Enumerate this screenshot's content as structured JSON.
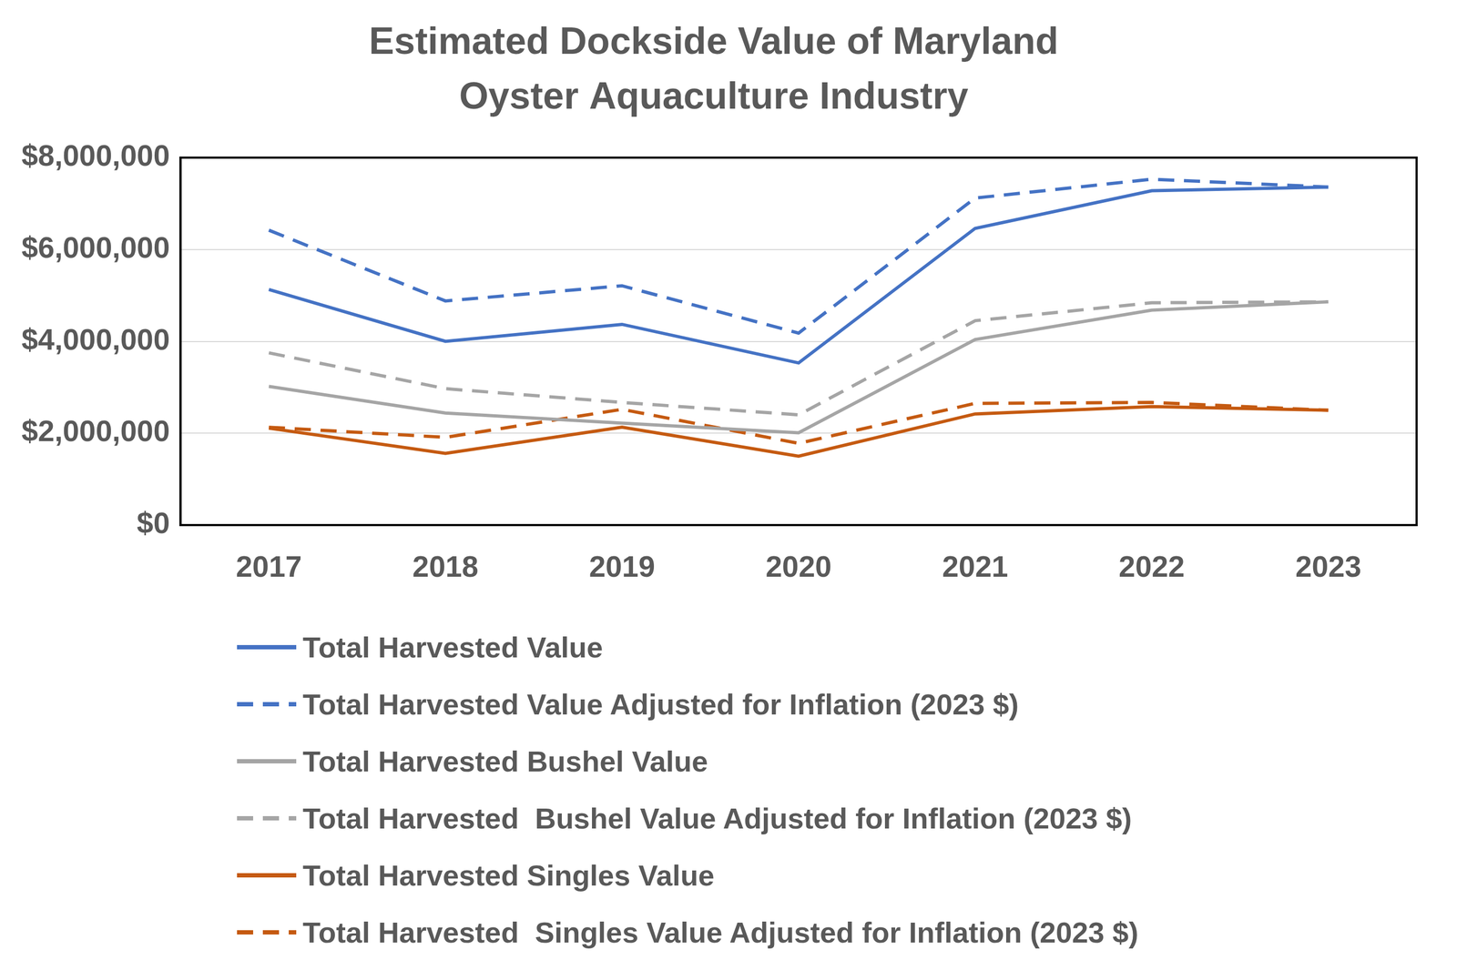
{
  "chart_data": {
    "type": "line",
    "title": "Estimated Dockside Value of Maryland Oyster Aquaculture Industry",
    "categories": [
      "2017",
      "2018",
      "2019",
      "2020",
      "2021",
      "2022",
      "2023"
    ],
    "series": [
      {
        "name": "Total Harvested Value",
        "color": "#4472c4",
        "line_style": "solid",
        "values": [
          5130000,
          4000000,
          4370000,
          3530000,
          6460000,
          7280000,
          7360000
        ]
      },
      {
        "name": "Total Harvested Value Adjusted for Inflation (2023 $)",
        "color": "#4472c4",
        "line_style": "dashed",
        "values": [
          6420000,
          4880000,
          5210000,
          4180000,
          7120000,
          7530000,
          7360000
        ]
      },
      {
        "name": "Total Harvested Bushel Value",
        "color": "#a5a5a5",
        "line_style": "solid",
        "values": [
          3020000,
          2440000,
          2220000,
          2010000,
          4040000,
          4680000,
          4860000
        ]
      },
      {
        "name": "Total Harvested  Bushel Value Adjusted for Inflation (2023 $)",
        "color": "#a5a5a5",
        "line_style": "dashed",
        "values": [
          3750000,
          2970000,
          2670000,
          2400000,
          4450000,
          4840000,
          4860000
        ]
      },
      {
        "name": "Total Harvested Singles Value",
        "color": "#c55a11",
        "line_style": "solid",
        "values": [
          2110000,
          1560000,
          2130000,
          1500000,
          2420000,
          2580000,
          2500000
        ]
      },
      {
        "name": "Total Harvested  Singles Value Adjusted for Inflation (2023 $)",
        "color": "#c55a11",
        "line_style": "dashed",
        "values": [
          2130000,
          1910000,
          2520000,
          1780000,
          2650000,
          2670000,
          2500000
        ]
      }
    ],
    "ylim": [
      0,
      8000000
    ],
    "yticks": [
      {
        "value": 0,
        "label": "$0"
      },
      {
        "value": 2000000,
        "label": "$2,000,000"
      },
      {
        "value": 4000000,
        "label": "$4,000,000"
      },
      {
        "value": 6000000,
        "label": "$6,000,000"
      },
      {
        "value": 8000000,
        "label": "$8,000,000"
      }
    ],
    "grid": true,
    "legend": "bottom"
  }
}
